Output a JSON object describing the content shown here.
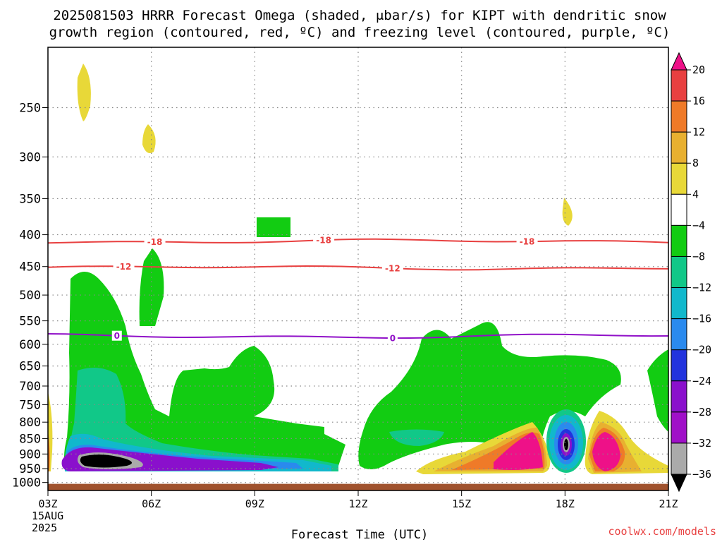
{
  "title": {
    "line1": "2025081503 HRRR Forecast Omega (shaded, μbar/s) for KIPT with dendritic snow",
    "line2": "growth region (contoured, red, ºC) and freezing level (contoured, purple, ºC)"
  },
  "chart_data": {
    "type": "time-height cross-section",
    "xlabel": "Forecast Time (UTC)",
    "x_ticks": [
      "03Z",
      "06Z",
      "09Z",
      "12Z",
      "15Z",
      "18Z",
      "21Z"
    ],
    "x_tick_hours": [
      3,
      6,
      9,
      12,
      15,
      18,
      21
    ],
    "x_date_label": [
      "15AUG",
      "2025"
    ],
    "xlim_hours": [
      3,
      21
    ],
    "y_ticks": [
      250,
      300,
      350,
      400,
      450,
      500,
      550,
      600,
      650,
      700,
      750,
      800,
      850,
      900,
      950,
      1000
    ],
    "ylim_hPa": [
      200,
      1030
    ],
    "y_scale": "pressure (log)",
    "grid": true,
    "colorbar": {
      "levels": [
        20,
        16,
        12,
        8,
        4,
        -4,
        -8,
        -12,
        -16,
        -20,
        -24,
        -28,
        -32,
        -36
      ],
      "colors": [
        "#ee1188",
        "#e84040",
        "#ef7a28",
        "#e8b030",
        "#e8d838",
        "#ffffff",
        "#12cc12",
        "#11c888",
        "#11b8cc",
        "#2a8aee",
        "#2233dd",
        "#8a10cc",
        "#a010c8",
        "#aaaaaa",
        "#000000"
      ],
      "position": "right"
    },
    "contours": [
      {
        "label": "-18",
        "color": "#e84040",
        "pressure_hPa": 410,
        "label_hours": [
          6.1,
          11.0,
          16.9
        ]
      },
      {
        "label": "-12",
        "color": "#e84040",
        "pressure_hPa": 452,
        "label_hours": [
          5.2,
          13.0
        ]
      },
      {
        "label": "0",
        "color": "#9010c8",
        "pressure_hPa": 582,
        "label_hours": [
          5.0,
          13.0
        ]
      }
    ],
    "surface": {
      "color": "#a0522d",
      "pressure_hPa": 1005
    }
  },
  "credit": "coolwx.com/models",
  "colors": {
    "grid": "#888888",
    "credit": "#e84040"
  }
}
